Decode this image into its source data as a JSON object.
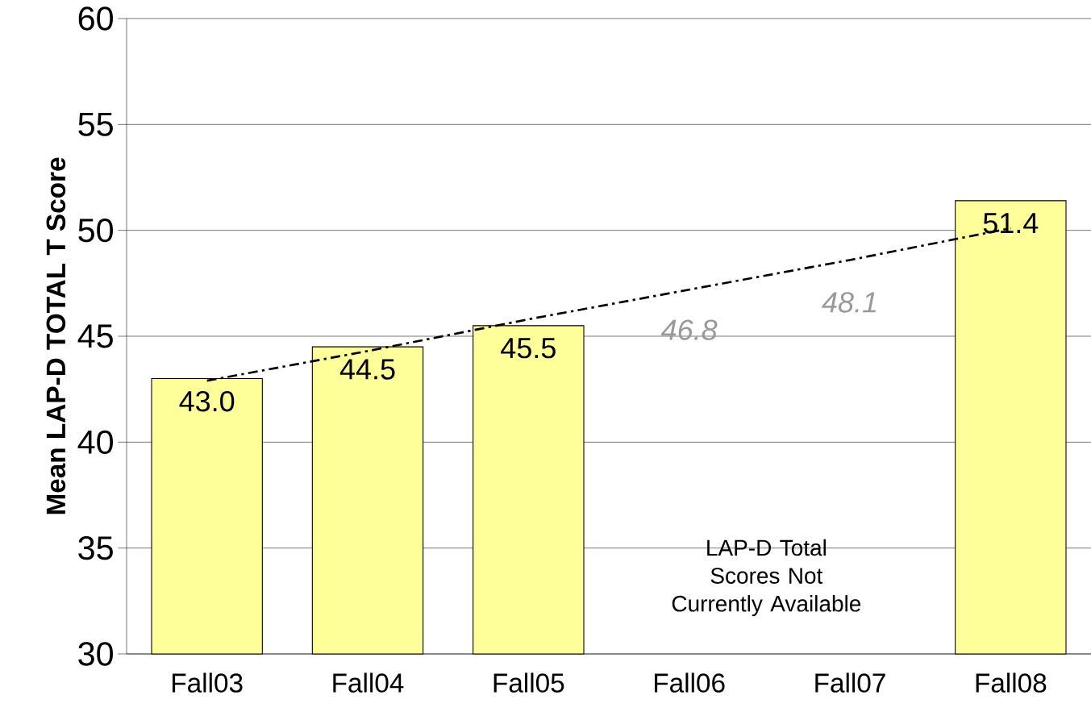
{
  "chart_data": {
    "type": "bar",
    "ylabel": "Mean LAP-D TOTAL T Score",
    "categories": [
      "Fall03",
      "Fall04",
      "Fall05",
      "Fall06",
      "Fall07",
      "Fall08"
    ],
    "series": [
      {
        "color": "#ffff99",
        "values": [
          43.0,
          44.5,
          45.5,
          null,
          null,
          51.4
        ],
        "value_labels": [
          "43.0",
          "44.5",
          "45.5",
          null,
          null,
          "51.4"
        ]
      },
      {
        "type": "line",
        "color": "#000000",
        "line_style": "dashdot",
        "values": [
          42.9,
          44.3,
          45.8,
          47.2,
          48.6,
          50.1
        ]
      }
    ],
    "annotations": [
      "46.8",
      "48.1",
      "LAP-D Total Scores Not Currently Available"
    ],
    "ylim": [
      30,
      60
    ],
    "yticks": [
      30,
      35,
      40,
      45,
      50,
      55,
      60
    ],
    "grid": "y"
  }
}
